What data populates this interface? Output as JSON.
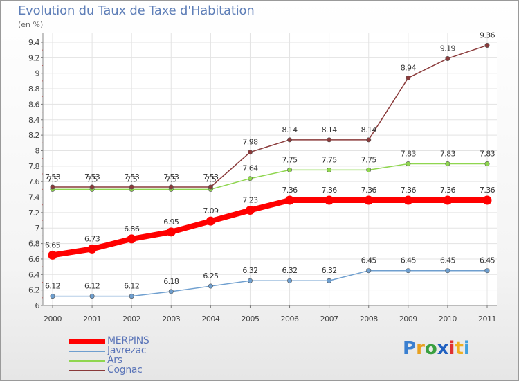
{
  "title": "Evolution du Taux de Taxe d'Habitation",
  "subtitle": "(en %)",
  "logo": {
    "text": "Proxiti",
    "letter_colors": [
      "#3a7fd0",
      "#e8a020",
      "#3aa040",
      "#2060c0",
      "#e03030",
      "#f0b020",
      "#40a0e0"
    ]
  },
  "chart_data": {
    "type": "line",
    "title": "Evolution du Taux de Taxe d'Habitation",
    "subtitle": "(en %)",
    "xlabel": "",
    "ylabel": "",
    "x": [
      "2000",
      "2001",
      "2002",
      "2003",
      "2004",
      "2005",
      "2006",
      "2007",
      "2008",
      "2009",
      "2010",
      "2011"
    ],
    "ylim": [
      6,
      9.4
    ],
    "yticks": [
      "6",
      "6.2",
      "6.4",
      "6.6",
      "6.8",
      "7",
      "7.2",
      "7.4",
      "7.6",
      "7.8",
      "8",
      "8.2",
      "8.4",
      "8.6",
      "8.8",
      "9",
      "9.2",
      "9.4"
    ],
    "grid": true,
    "legend_position": "bottom-left",
    "series": [
      {
        "name": "MERPINS",
        "color": "#ff0000",
        "emphasis": true,
        "values": [
          6.65,
          6.73,
          6.86,
          6.95,
          7.09,
          7.23,
          7.36,
          7.36,
          7.36,
          7.36,
          7.36,
          7.36
        ],
        "labels": [
          "6.65",
          "6.73",
          "6.86",
          "6.95",
          "7.09",
          "7.23",
          "7.36",
          "7.36",
          "7.36",
          "7.36",
          "7.36",
          "7.36"
        ]
      },
      {
        "name": "Javrezac",
        "color": "#6f9fcf",
        "emphasis": false,
        "values": [
          6.12,
          6.12,
          6.12,
          6.18,
          6.25,
          6.32,
          6.32,
          6.32,
          6.45,
          6.45,
          6.45,
          6.45
        ],
        "labels": [
          "6.12",
          "6.12",
          "6.12",
          "6.18",
          "6.25",
          "6.32",
          "6.32",
          "6.32",
          "6.45",
          "6.45",
          "6.45",
          "6.45"
        ]
      },
      {
        "name": "Ars",
        "color": "#8fd64f",
        "emphasis": false,
        "values": [
          7.5,
          7.5,
          7.5,
          7.5,
          7.5,
          7.64,
          7.75,
          7.75,
          7.75,
          7.83,
          7.83,
          7.83
        ],
        "labels": [
          "7.5",
          "7.5",
          "7.5",
          "7.5",
          "7.5",
          "7.64",
          "7.75",
          "7.75",
          "7.75",
          "7.83",
          "7.83",
          "7.83"
        ]
      },
      {
        "name": "Cognac",
        "color": "#8a3a3a",
        "emphasis": false,
        "values": [
          7.53,
          7.53,
          7.53,
          7.53,
          7.53,
          7.98,
          8.14,
          8.14,
          8.14,
          8.94,
          9.19,
          9.36
        ],
        "labels": [
          "7.53",
          "7.53",
          "7.53",
          "7.53",
          "7.53",
          "7.98",
          "8.14",
          "8.14",
          "8.14",
          "8.94",
          "9.19",
          "9.36"
        ]
      }
    ]
  }
}
